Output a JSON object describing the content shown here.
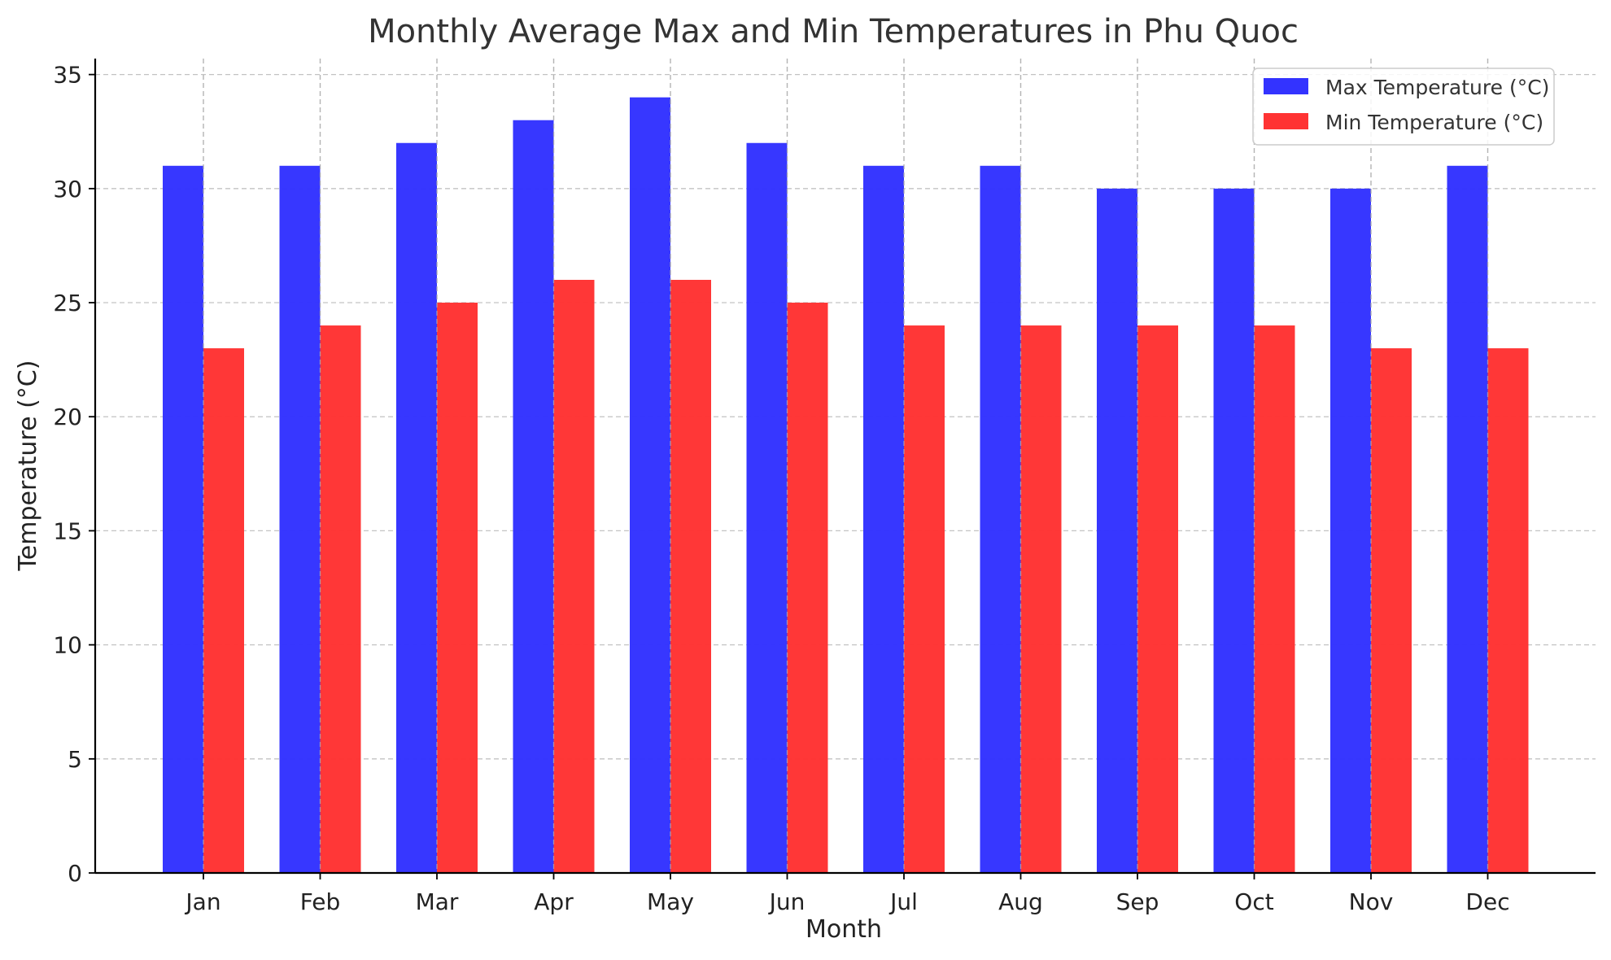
{
  "chart_data": {
    "type": "bar",
    "title": "Monthly Average Max and Min Temperatures in Phu Quoc",
    "xlabel": "Month",
    "ylabel": "Temperature (°C)",
    "categories": [
      "Jan",
      "Feb",
      "Mar",
      "Apr",
      "May",
      "Jun",
      "Jul",
      "Aug",
      "Sep",
      "Oct",
      "Nov",
      "Dec"
    ],
    "series": [
      {
        "name": "Max Temperature (°C)",
        "color": "#3333ff",
        "values": [
          31,
          31,
          32,
          33,
          34,
          32,
          31,
          31,
          30,
          30,
          30,
          31
        ]
      },
      {
        "name": "Min Temperature (°C)",
        "color": "#ff3333",
        "values": [
          23,
          24,
          25,
          26,
          26,
          25,
          24,
          24,
          24,
          24,
          23,
          23
        ]
      }
    ],
    "ylim": [
      0,
      35.7
    ],
    "yticks": [
      0,
      5,
      10,
      15,
      20,
      25,
      30,
      35
    ],
    "grid": true,
    "legend_position": "top-right"
  }
}
